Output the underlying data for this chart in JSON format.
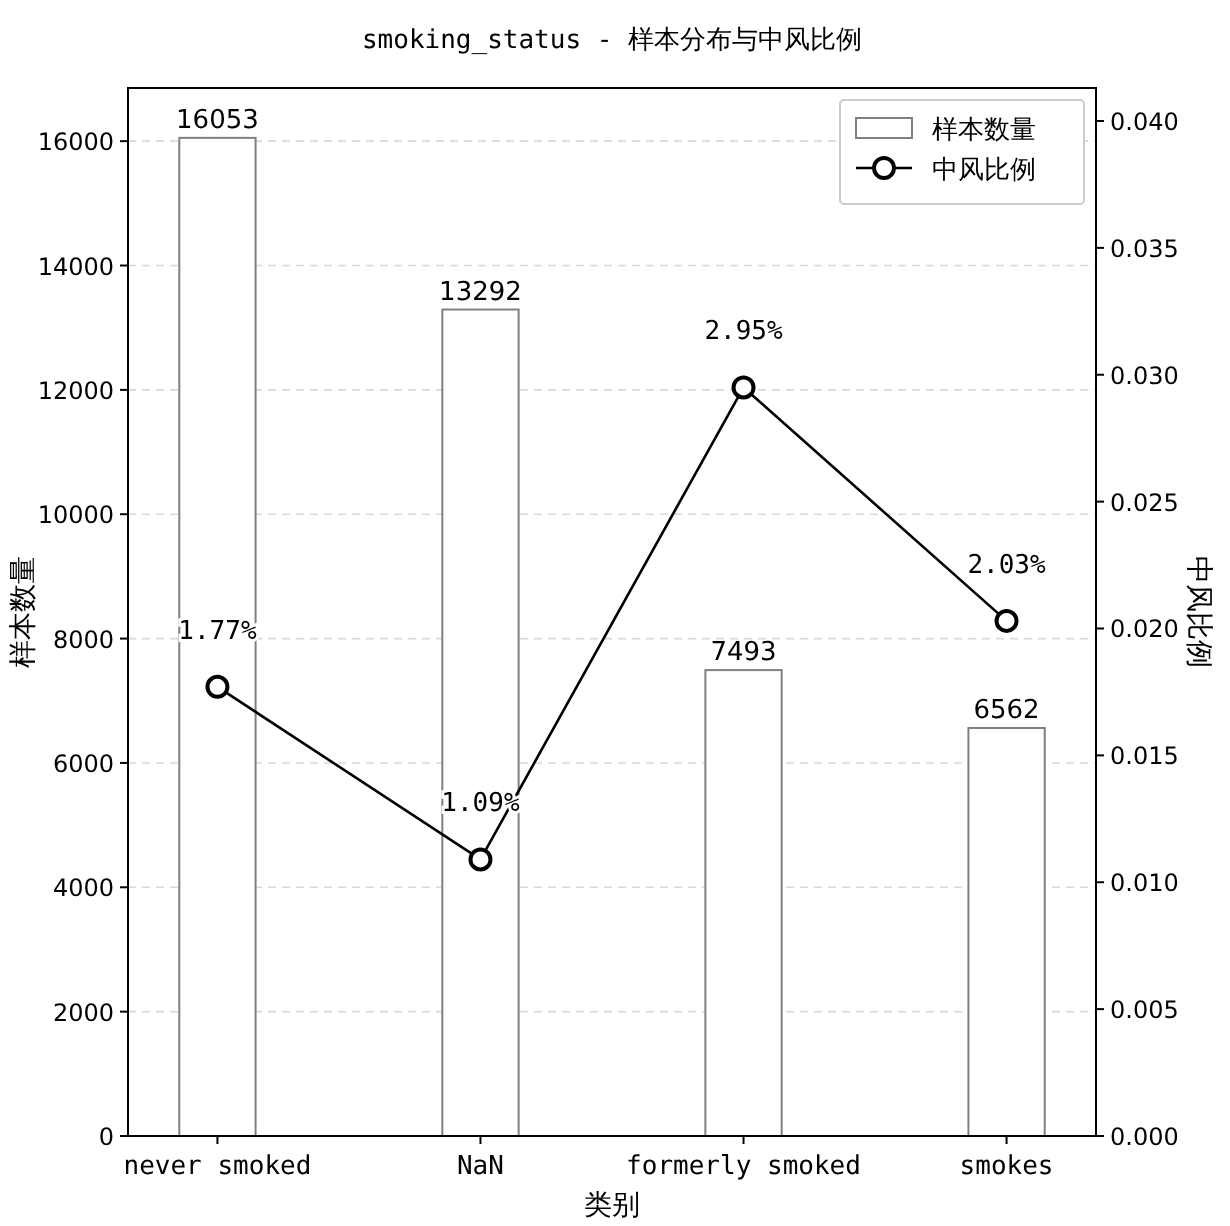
{
  "chart_data": {
    "type": "bar",
    "title": "smoking_status - 样本分布与中风比例",
    "xlabel": "类别",
    "ylabel": "样本数量",
    "y2label": "中风比例",
    "categories": [
      "never smoked",
      "NaN",
      "formerly smoked",
      "smokes"
    ],
    "series": [
      {
        "name": "样本数量",
        "color": "#ffffff",
        "values": [
          16053,
          13292,
          7493,
          6562
        ],
        "value_labels": [
          "16053",
          "13292",
          "7493",
          "6562"
        ]
      },
      {
        "name": "中风比例",
        "type": "line",
        "axis": "y2",
        "color": "#000000",
        "marker": "circle",
        "values": [
          0.0177,
          0.0109,
          0.0295,
          0.0203
        ],
        "value_labels": [
          "1.77%",
          "1.09%",
          "2.95%",
          "2.03%"
        ]
      }
    ],
    "ylim": [
      0,
      16855
    ],
    "yticks": [
      0,
      2000,
      4000,
      6000,
      8000,
      10000,
      12000,
      14000,
      16000
    ],
    "y2lim": [
      0,
      0.0413
    ],
    "y2ticks": [
      {
        "value": 0,
        "label": "0.000"
      },
      {
        "value": 0.005,
        "label": "0.005"
      },
      {
        "value": 0.01,
        "label": "0.010"
      },
      {
        "value": 0.015,
        "label": "0.015"
      },
      {
        "value": 0.02,
        "label": "0.020"
      },
      {
        "value": 0.025,
        "label": "0.025"
      },
      {
        "value": 0.03,
        "label": "0.030"
      },
      {
        "value": 0.035,
        "label": "0.035"
      },
      {
        "value": 0.04,
        "label": "0.040"
      }
    ],
    "grid": "y",
    "legend": "top right"
  }
}
